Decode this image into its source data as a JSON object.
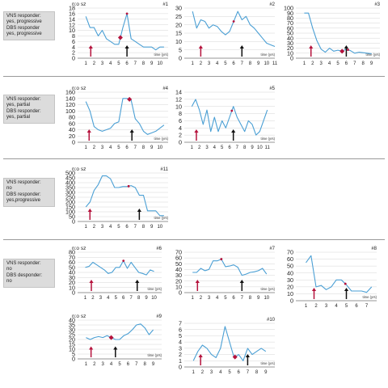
{
  "groups": [
    {
      "lines": [
        "VNS responder:",
        "yes, progressive",
        "DBS responder",
        "yes, progressive"
      ]
    },
    {
      "lines": [
        "VNS responder:",
        "yes, partial",
        "DBS responder:",
        "yes, partial"
      ]
    },
    {
      "lines": [
        "VNS responder:",
        "no",
        "DBS responder:",
        "yes,progressive"
      ]
    },
    {
      "lines": [
        "VNS responder:",
        "no",
        "DBS desponder:",
        "no"
      ]
    }
  ],
  "colors": {
    "line": "#4a9fd4",
    "vns_arrow": "#b5123c",
    "dbs_arrow": "#111111",
    "diamond": "#b5123c",
    "grid": "#d6d6d6"
  },
  "chart_data": [
    {
      "type": "line",
      "title": "#1",
      "ylabel": "n:o sz",
      "xlabel": "time (yrs)",
      "yticks": [
        0,
        2,
        4,
        6,
        8,
        10,
        12,
        14,
        16,
        18
      ],
      "ylim": [
        0,
        18
      ],
      "xlim": [
        0,
        11
      ],
      "xticks": [
        1,
        2,
        3,
        4,
        5,
        6,
        7,
        8,
        9,
        10
      ],
      "x": [
        1,
        1.5,
        2,
        2.5,
        3,
        3.5,
        4,
        4.5,
        5,
        5.5,
        6,
        6.5,
        7,
        7.5,
        8,
        8.5,
        9,
        9.5,
        10,
        10.5
      ],
      "y": [
        15,
        11,
        11,
        8,
        10,
        7,
        6,
        5,
        5,
        11,
        16,
        7,
        6,
        5,
        4,
        4,
        4,
        3,
        4,
        4
      ],
      "vns_arrow": 1.6,
      "dbs_arrow": 6,
      "diamonds": [
        5.2
      ],
      "stars": [
        6
      ]
    },
    {
      "type": "line",
      "title": "#2",
      "ylabel": "",
      "xlabel": "time (yrs)",
      "yticks": [
        0,
        5,
        10,
        15,
        20,
        25,
        30
      ],
      "ylim": [
        0,
        30
      ],
      "xlim": [
        0,
        11
      ],
      "xticks": [
        1,
        2,
        3,
        4,
        5,
        6,
        7,
        8,
        9,
        10,
        11
      ],
      "x": [
        1,
        1.5,
        2,
        2.5,
        3,
        3.5,
        4,
        4.5,
        5,
        5.5,
        6,
        6.5,
        7,
        7.5,
        8,
        8.5,
        9,
        9.5,
        10,
        10.5,
        11
      ],
      "y": [
        28,
        18,
        23,
        22,
        18,
        20,
        19,
        16,
        14,
        16,
        22,
        28,
        23,
        25,
        20,
        18,
        15,
        12,
        9,
        8,
        7
      ],
      "vns_arrow": 2,
      "dbs_arrow": 7,
      "diamonds": [],
      "stars": [
        6
      ]
    },
    {
      "type": "line",
      "title": "#3",
      "ylabel": "",
      "xlabel": "time (yrs)",
      "yticks": [
        0,
        10,
        20,
        30,
        40,
        50,
        60,
        70,
        80,
        90,
        100
      ],
      "ylim": [
        0,
        100
      ],
      "xlim": [
        0,
        10
      ],
      "xticks": [
        1,
        2,
        3,
        4,
        5,
        6,
        7,
        8,
        9
      ],
      "x": [
        1,
        1.5,
        2,
        2.5,
        3,
        3.5,
        4,
        4.5,
        5,
        5.5,
        6,
        6.5,
        7,
        7.5,
        8,
        8.5,
        9
      ],
      "y": [
        90,
        90,
        60,
        35,
        18,
        12,
        20,
        14,
        16,
        14,
        18,
        15,
        10,
        12,
        11,
        10,
        9
      ],
      "vns_arrow": 1.8,
      "dbs_arrow": 6,
      "diamonds": [
        5.5
      ],
      "stars": [
        6.2
      ]
    },
    {
      "type": "line",
      "title": "#4",
      "ylabel": "n:o sz",
      "xlabel": "time (yrs)",
      "yticks": [
        0,
        20,
        40,
        60,
        80,
        100,
        120,
        140,
        160
      ],
      "ylim": [
        0,
        160
      ],
      "xlim": [
        0,
        11
      ],
      "xticks": [
        1,
        2,
        3,
        4,
        5,
        6,
        7,
        8,
        9,
        10
      ],
      "x": [
        1,
        1.5,
        2,
        2.5,
        3,
        3.5,
        4,
        4.5,
        5,
        5.5,
        6,
        6.5,
        7,
        7.5,
        8,
        8.5,
        9,
        9.5,
        10,
        10.5
      ],
      "y": [
        130,
        100,
        50,
        40,
        35,
        40,
        45,
        60,
        65,
        140,
        140,
        135,
        75,
        60,
        35,
        25,
        30,
        35,
        45,
        55
      ],
      "vns_arrow": 1.4,
      "dbs_arrow": 6.6,
      "diamonds": [
        6.3
      ],
      "stars": []
    },
    {
      "type": "line",
      "title": "#5",
      "ylabel": "",
      "xlabel": "time (yrs)",
      "yticks": [
        0,
        2,
        4,
        6,
        8,
        10,
        12,
        14
      ],
      "ylim": [
        0,
        14
      ],
      "xlim": [
        0,
        12
      ],
      "xticks": [
        1,
        2,
        3,
        4,
        5,
        6,
        7,
        8,
        9,
        10,
        11
      ],
      "x": [
        1,
        1.5,
        2,
        2.5,
        3,
        3.5,
        4,
        4.5,
        5,
        5.5,
        6,
        6.5,
        7,
        7.5,
        8,
        8.5,
        9,
        9.5,
        10,
        10.5,
        11
      ],
      "y": [
        10,
        12,
        9,
        5,
        9,
        3,
        7,
        3,
        6,
        4,
        7,
        10,
        7,
        5,
        3,
        6,
        5,
        2,
        3,
        6,
        9
      ],
      "vns_arrow": 1.6,
      "dbs_arrow": 6.5,
      "diamonds": [],
      "stars": [
        6.3
      ]
    },
    {
      "type": "line",
      "title": "#11",
      "ylabel": "n:o sz",
      "xlabel": "time (yrs)",
      "yticks": [
        0,
        50,
        100,
        150,
        200,
        250,
        300,
        350,
        400,
        450,
        500
      ],
      "ylim": [
        0,
        500
      ],
      "xlim": [
        0,
        11
      ],
      "xticks": [
        1,
        2,
        3,
        4,
        5,
        6,
        7,
        8,
        9,
        10
      ],
      "x": [
        1,
        1.5,
        2,
        2.5,
        3,
        3.5,
        4,
        4.5,
        5,
        5.5,
        6,
        6.5,
        7,
        7.5,
        8,
        8.5,
        9,
        9.5,
        10,
        10.5
      ],
      "y": [
        150,
        200,
        320,
        380,
        470,
        470,
        440,
        350,
        350,
        360,
        360,
        370,
        350,
        270,
        270,
        110,
        110,
        110,
        60,
        60
      ],
      "vns_arrow": 1.5,
      "dbs_arrow": 7.5,
      "diamonds": [],
      "stars": [
        6.2
      ]
    },
    {
      "type": "line",
      "title": "#6",
      "ylabel": "n:o sz",
      "xlabel": "time (yrs)",
      "yticks": [
        0,
        10,
        20,
        30,
        40,
        50,
        60,
        70,
        80
      ],
      "ylim": [
        0,
        80
      ],
      "xlim": [
        0,
        11
      ],
      "xticks": [
        1,
        2,
        3,
        4,
        5,
        6,
        7,
        8,
        9,
        10
      ],
      "x": [
        1,
        1.5,
        2,
        2.5,
        3,
        3.5,
        4,
        4.5,
        5,
        5.5,
        6,
        6.5,
        7,
        7.5,
        8,
        8.5,
        9,
        9.5,
        10
      ],
      "y": [
        50,
        52,
        60,
        55,
        50,
        45,
        38,
        40,
        50,
        50,
        63,
        48,
        60,
        50,
        40,
        38,
        35,
        45,
        42
      ],
      "vns_arrow": 1.8,
      "dbs_arrow": 7.8,
      "diamonds": [],
      "stars": [
        6
      ]
    },
    {
      "type": "line",
      "title": "#7",
      "ylabel": "",
      "xlabel": "time (yrs)",
      "yticks": [
        0,
        10,
        20,
        30,
        40,
        50,
        60,
        70
      ],
      "ylim": [
        0,
        70
      ],
      "xlim": [
        0,
        11
      ],
      "xticks": [
        1,
        2,
        3,
        4,
        5,
        6,
        7,
        8,
        9,
        10
      ],
      "x": [
        1,
        1.5,
        2,
        2.5,
        3,
        3.5,
        4,
        4.5,
        5,
        5.5,
        6,
        6.5,
        7,
        7.5,
        8,
        8.5,
        9,
        9.5,
        10
      ],
      "y": [
        35,
        35,
        42,
        38,
        40,
        55,
        55,
        58,
        45,
        46,
        48,
        44,
        30,
        32,
        35,
        36,
        38,
        42,
        32
      ],
      "vns_arrow": 1.6,
      "dbs_arrow": 7,
      "diamonds": [],
      "stars": [
        4.5
      ]
    },
    {
      "type": "line",
      "title": "#8",
      "ylabel": "",
      "xlabel": "time (yrs)",
      "yticks": [
        0,
        10,
        20,
        30,
        40,
        50,
        60,
        70
      ],
      "ylim": [
        0,
        70
      ],
      "xlim": [
        0,
        8
      ],
      "xticks": [
        1,
        2,
        3,
        4,
        5,
        6,
        7
      ],
      "x": [
        1,
        1.5,
        2,
        2.5,
        3,
        3.5,
        4,
        4.5,
        5,
        5.5,
        6,
        6.5,
        7,
        7.5
      ],
      "y": [
        55,
        65,
        20,
        22,
        16,
        20,
        30,
        30,
        23,
        14,
        14,
        14,
        12,
        20
      ],
      "vns_arrow": 1.8,
      "dbs_arrow": 5,
      "diamonds": [],
      "stars": [
        4.9
      ]
    },
    {
      "type": "line",
      "title": "#9",
      "ylabel": "n:o sz",
      "xlabel": "time (yrs)",
      "yticks": [
        0,
        5,
        10,
        15,
        20,
        25,
        30,
        35,
        40
      ],
      "ylim": [
        0,
        40
      ],
      "xlim": [
        0,
        10
      ],
      "xticks": [
        1,
        2,
        3,
        4,
        5,
        6,
        7,
        8,
        9
      ],
      "x": [
        1,
        1.5,
        2,
        2.5,
        3,
        3.5,
        4,
        4.5,
        5,
        5.5,
        6,
        6.5,
        7,
        7.5,
        8,
        8.5,
        9
      ],
      "y": [
        22,
        20,
        22,
        23,
        22,
        24,
        22,
        20,
        20,
        24,
        26,
        30,
        35,
        36,
        32,
        25,
        30
      ],
      "vns_arrow": 1.6,
      "dbs_arrow": 4.5,
      "diamonds": [
        4
      ],
      "stars": []
    },
    {
      "type": "line",
      "title": "#10",
      "ylabel": "",
      "xlabel": "time (yrs)",
      "yticks": [
        0,
        1,
        2,
        3,
        4,
        5,
        6,
        7
      ],
      "ylim": [
        0,
        7
      ],
      "xlim": [
        0,
        10
      ],
      "xticks": [
        1,
        2,
        3,
        4,
        5,
        6,
        7,
        8,
        9
      ],
      "x": [
        1,
        1.5,
        2,
        2.5,
        3,
        3.5,
        4,
        4.5,
        5,
        5.5,
        6,
        6.5,
        7,
        7.5,
        8,
        8.5,
        9
      ],
      "y": [
        1,
        2.5,
        3.5,
        3,
        2,
        1.5,
        3,
        6.5,
        4,
        1.5,
        2,
        1,
        3,
        2,
        2.5,
        3,
        2.5
      ],
      "vns_arrow": 1.8,
      "dbs_arrow": 7,
      "diamonds": [
        5.6
      ],
      "stars": []
    }
  ]
}
